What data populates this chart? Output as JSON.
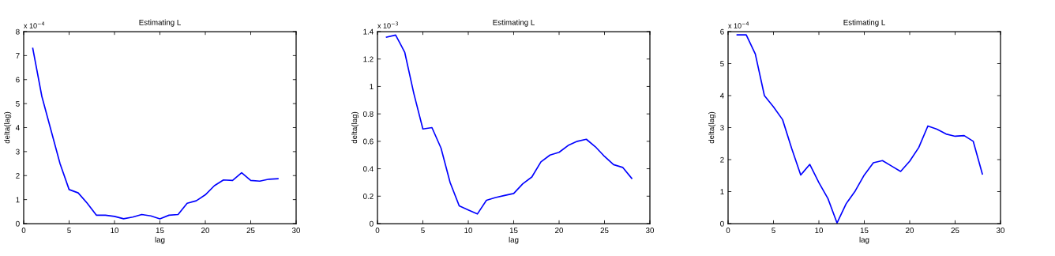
{
  "chart_data": [
    {
      "type": "line",
      "title": "Estimating L",
      "xlabel": "lag",
      "ylabel": "delta(lag)",
      "annotations": [
        "x 10$^{−4}$"
      ],
      "x": [
        1,
        2,
        3,
        4,
        5,
        6,
        7,
        8,
        9,
        10,
        11,
        12,
        13,
        14,
        15,
        16,
        17,
        18,
        19,
        20,
        21,
        22,
        23,
        24,
        25,
        26,
        27,
        28
      ],
      "series": [
        {
          "color": "#0000ff",
          "values": [
            7.3,
            5.3,
            3.9,
            2.5,
            1.42,
            1.28,
            0.85,
            0.35,
            0.35,
            0.3,
            0.2,
            0.27,
            0.38,
            0.32,
            0.2,
            0.35,
            0.38,
            0.85,
            0.95,
            1.2,
            1.58,
            1.82,
            1.8,
            2.12,
            1.8,
            1.77,
            1.85,
            1.87
          ]
        }
      ],
      "xlim": [
        0,
        30
      ],
      "xticks": [
        0,
        5,
        10,
        15,
        20,
        25,
        30
      ],
      "ylim": [
        0,
        8
      ],
      "yticks": [
        0,
        1,
        2,
        3,
        4,
        5,
        6,
        7,
        8
      ],
      "grid": false,
      "legend": false,
      "marker": "none",
      "line_style": "solid"
    },
    {
      "type": "line",
      "title": "Estimating L",
      "xlabel": "lag",
      "ylabel": "delta(lag)",
      "annotations": [
        "x 10$^{−3}$"
      ],
      "x": [
        1,
        2,
        3,
        4,
        5,
        6,
        7,
        8,
        9,
        10,
        11,
        12,
        13,
        14,
        15,
        16,
        17,
        18,
        19,
        20,
        21,
        22,
        23,
        24,
        25,
        26,
        27,
        28
      ],
      "series": [
        {
          "color": "#0000ff",
          "values": [
            1.36,
            1.375,
            1.25,
            0.95,
            0.69,
            0.7,
            0.55,
            0.3,
            0.13,
            0.1,
            0.07,
            0.17,
            0.19,
            0.205,
            0.22,
            0.29,
            0.34,
            0.45,
            0.5,
            0.52,
            0.57,
            0.6,
            0.615,
            0.56,
            0.49,
            0.43,
            0.41,
            0.33
          ]
        }
      ],
      "xlim": [
        0,
        30
      ],
      "xticks": [
        0,
        5,
        10,
        15,
        20,
        25,
        30
      ],
      "ylim": [
        0,
        1.4
      ],
      "yticks": [
        0,
        0.2,
        0.4,
        0.6,
        0.8,
        1,
        1.2,
        1.4
      ],
      "grid": false,
      "legend": false,
      "marker": "none",
      "line_style": "solid"
    },
    {
      "type": "line",
      "title": "Estimating L",
      "xlabel": "lag",
      "ylabel": "delta(lag)",
      "annotations": [
        "x 10$^{−4}$"
      ],
      "x": [
        1,
        2,
        3,
        4,
        5,
        6,
        7,
        8,
        9,
        10,
        11,
        12,
        13,
        14,
        15,
        16,
        17,
        18,
        19,
        20,
        21,
        22,
        23,
        24,
        25,
        26,
        27,
        28
      ],
      "series": [
        {
          "color": "#0000ff",
          "values": [
            5.9,
            5.9,
            5.3,
            4.0,
            3.65,
            3.25,
            2.35,
            1.52,
            1.85,
            1.28,
            0.78,
            0.02,
            0.62,
            1.02,
            1.52,
            1.9,
            1.97,
            1.8,
            1.63,
            1.95,
            2.38,
            3.05,
            2.95,
            2.8,
            2.73,
            2.75,
            2.57,
            1.55
          ]
        }
      ],
      "xlim": [
        0,
        30
      ],
      "xticks": [
        0,
        5,
        10,
        15,
        20,
        25,
        30
      ],
      "ylim": [
        0,
        6
      ],
      "yticks": [
        0,
        1,
        2,
        3,
        4,
        5,
        6
      ],
      "grid": false,
      "legend": false,
      "marker": "none",
      "line_style": "solid"
    }
  ]
}
